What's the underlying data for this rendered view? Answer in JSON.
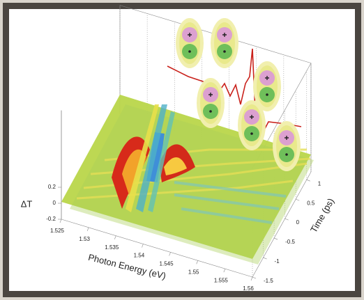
{
  "chart_data": {
    "type": "surface",
    "x_label": "Photon Energy (eV)",
    "y_label": "Time (ps)",
    "z_label": "ΔT",
    "xlim": [
      1.525,
      1.56
    ],
    "xticks": [
      1.525,
      1.53,
      1.535,
      1.54,
      1.545,
      1.55,
      1.555,
      1.56
    ],
    "ylim": [
      -1.5,
      1.2
    ],
    "yticks": [
      -1.5,
      -1,
      -0.5,
      0,
      0.5,
      1
    ],
    "zlim": [
      -0.2,
      0.2
    ],
    "zticks": [
      -0.2,
      0,
      0.2
    ]
  }
}
